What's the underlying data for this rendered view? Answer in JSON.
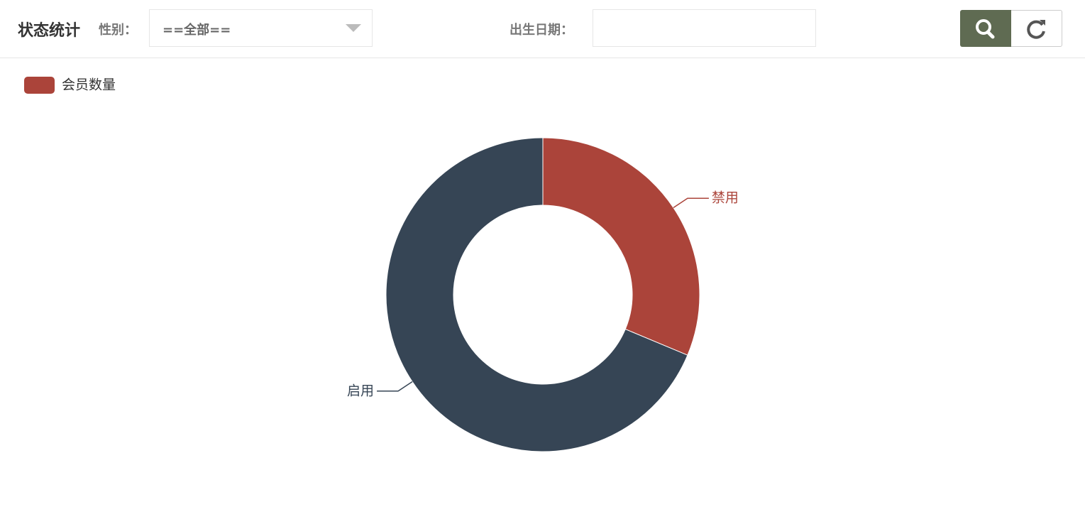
{
  "header": {
    "title": "状态统计",
    "gender_label": "性别：",
    "gender_value": "==全部==",
    "birth_label": "出生日期："
  },
  "chart_data": {
    "type": "pie",
    "donut": true,
    "series_name": "会员数量",
    "categories": [
      "禁用",
      "启用"
    ],
    "values": [
      31.3,
      68.7
    ],
    "colors": [
      "#ab443a",
      "#364555"
    ]
  }
}
